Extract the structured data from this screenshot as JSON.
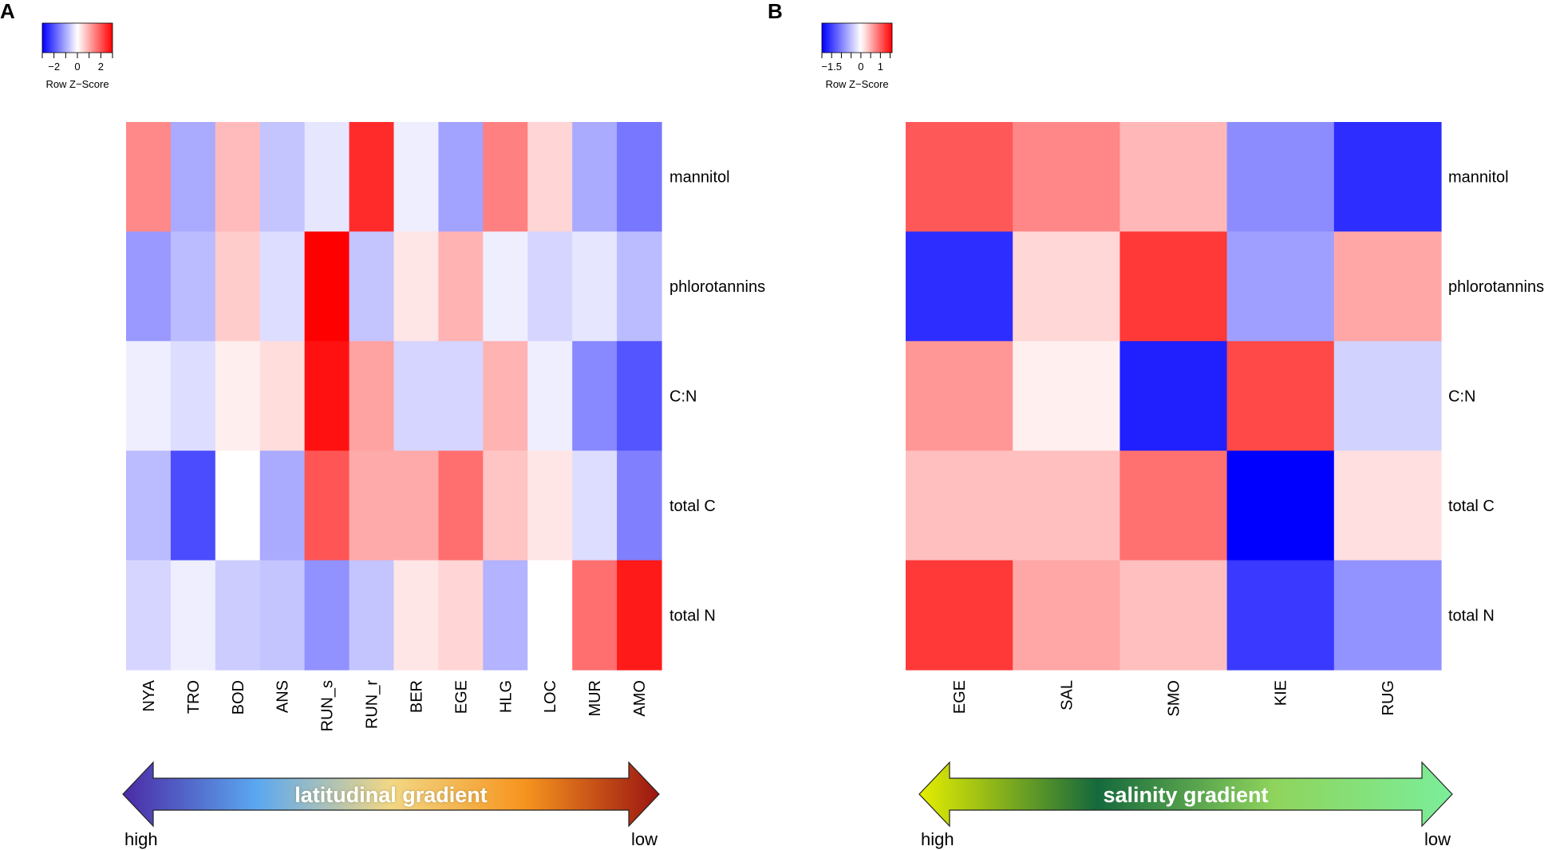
{
  "chart_data": [
    {
      "panel": "A",
      "type": "heatmap",
      "row_labels": [
        "mannitol",
        "phlorotannins",
        "C:N",
        "total C",
        "total N"
      ],
      "categories": [
        "NYA",
        "TRO",
        "BOD",
        "ANS",
        "RUN_s",
        "RUN_r",
        "BER",
        "EGE",
        "HLG",
        "LOC",
        "MUR",
        "AMO"
      ],
      "values": [
        [
          1.4,
          -1.0,
          0.8,
          -0.7,
          -0.3,
          2.5,
          -0.2,
          -1.1,
          1.5,
          0.5,
          -1.0,
          -1.6
        ],
        [
          -1.2,
          -0.8,
          0.6,
          -0.4,
          3.0,
          -0.7,
          0.3,
          0.9,
          -0.2,
          -0.5,
          -0.3,
          -0.8
        ],
        [
          -0.2,
          -0.4,
          0.2,
          0.4,
          2.8,
          1.1,
          -0.5,
          -0.5,
          0.9,
          -0.2,
          -1.4,
          -2.0
        ],
        [
          -0.8,
          -2.1,
          0.0,
          -1.0,
          2.0,
          1.0,
          1.0,
          1.7,
          0.7,
          0.3,
          -0.4,
          -1.5
        ],
        [
          -0.5,
          -0.2,
          -0.6,
          -0.7,
          -1.3,
          -0.7,
          0.3,
          0.5,
          -0.9,
          0.0,
          1.7,
          2.7
        ]
      ],
      "color_key": {
        "title": "Row Z−Score",
        "ticks": [
          "−2",
          "0",
          "2"
        ],
        "tick_values": [
          -2,
          0,
          2
        ],
        "range": [
          -3,
          3
        ],
        "low_color": "#0000ff",
        "mid_color": "#ffffff",
        "high_color": "#ff0000"
      },
      "gradient_arrow": {
        "label": "latitudinal gradient",
        "left_end": "high",
        "right_end": "low",
        "colors": [
          "#4b2aa6",
          "#5ba8f0",
          "#f2d784",
          "#f6941e",
          "#9b1510"
        ]
      }
    },
    {
      "panel": "B",
      "type": "heatmap",
      "row_labels": [
        "mannitol",
        "phlorotannins",
        "C:N",
        "total C",
        "total N"
      ],
      "categories": [
        "EGE",
        "SAL",
        "SMO",
        "KIE",
        "RUG"
      ],
      "values": [
        [
          1.05,
          0.75,
          0.45,
          -0.9,
          -1.65
        ],
        [
          -1.65,
          0.25,
          1.25,
          -0.75,
          0.55
        ],
        [
          0.65,
          0.1,
          -1.75,
          1.15,
          -0.35
        ],
        [
          0.4,
          0.4,
          0.9,
          -2.0,
          0.2
        ],
        [
          1.25,
          0.55,
          0.4,
          -1.55,
          -0.85
        ]
      ],
      "color_key": {
        "title": "Row Z−Score",
        "ticks": [
          "−1.5",
          "0",
          "1"
        ],
        "tick_values": [
          -1.5,
          0,
          1
        ],
        "range": [
          -2,
          1.6
        ],
        "low_color": "#0000ff",
        "mid_color": "#ffffff",
        "high_color": "#ff0000"
      },
      "gradient_arrow": {
        "label": "salinity gradient",
        "left_end": "high",
        "right_end": "low",
        "colors": [
          "#e6ee00",
          "#15693c",
          "#8fd45c",
          "#7bee9a"
        ]
      }
    }
  ]
}
